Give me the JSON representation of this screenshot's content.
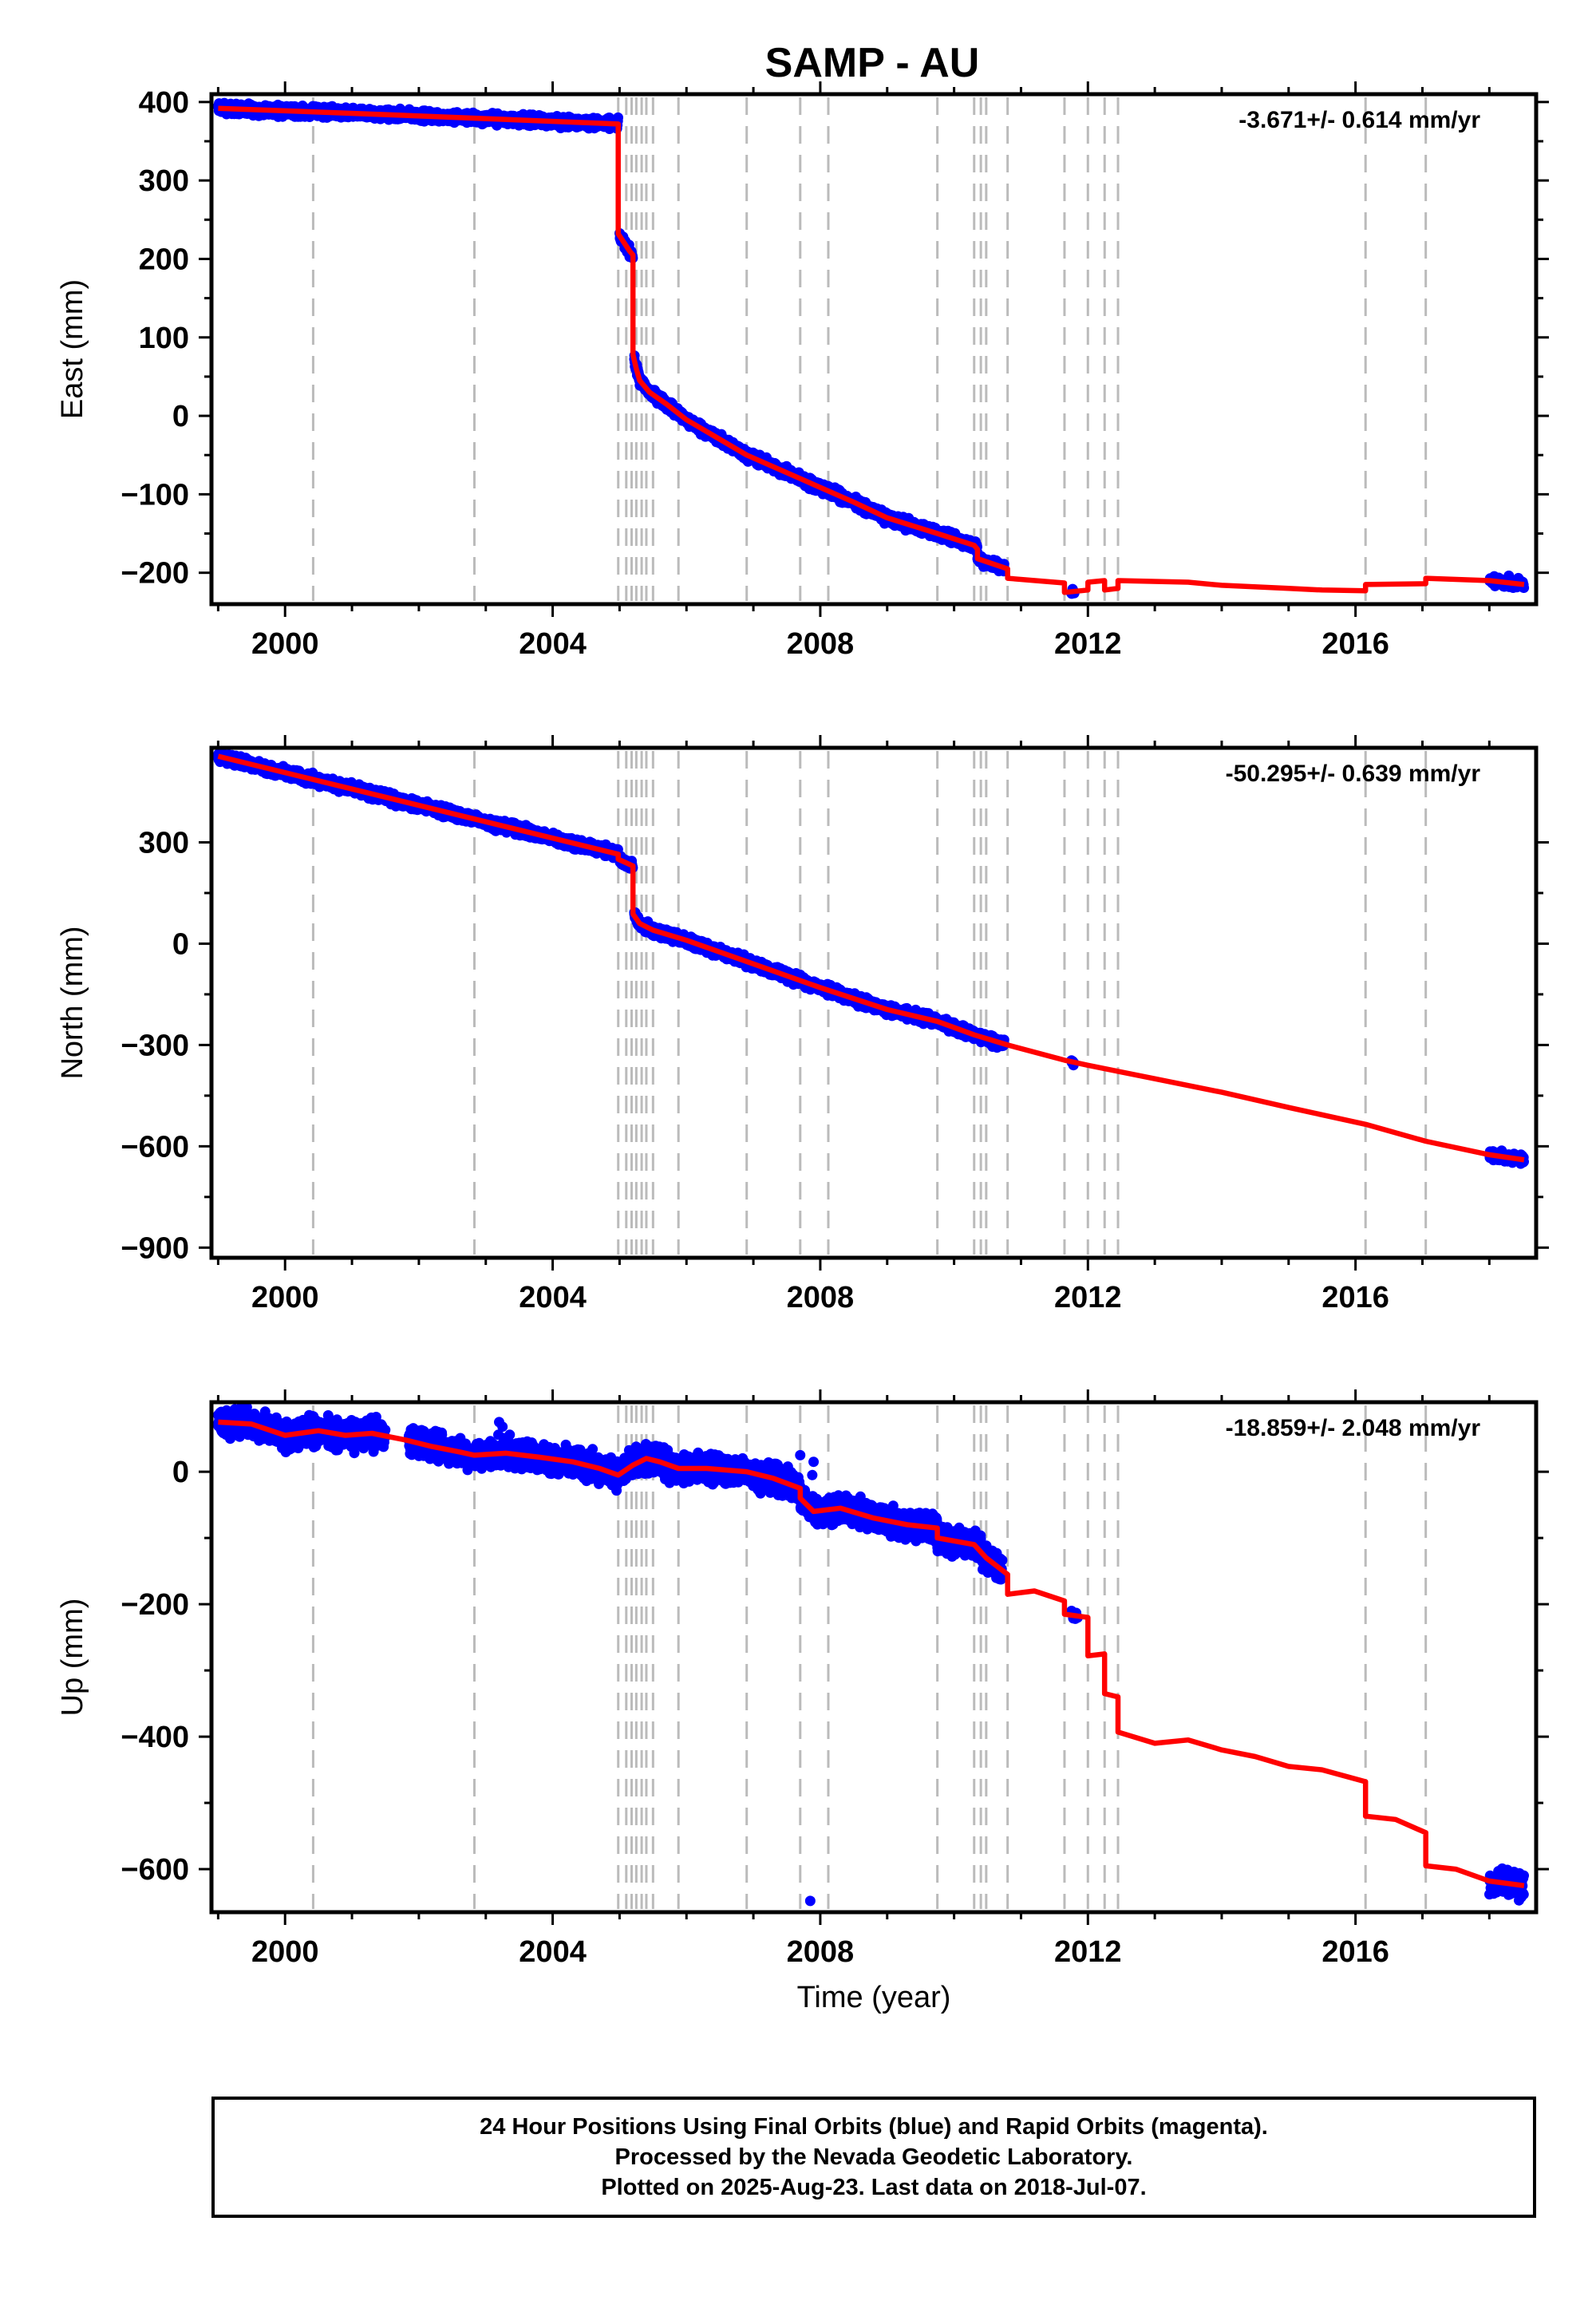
{
  "title": "SAMP - AU",
  "xlabel": "Time (year)",
  "colors": {
    "final_orbit_points": "#0000ff",
    "model_line": "#ff0000",
    "event_lines": "#bbbbbb"
  },
  "footer": {
    "line1": "24 Hour Positions Using Final Orbits (blue) and Rapid Orbits (magenta).",
    "line2": "Processed by the Nevada Geodetic Laboratory.",
    "line3": "Plotted on 2025-Aug-23. Last data on 2018-Jul-07."
  },
  "event_lines": [
    2000.42,
    2002.83,
    2004.98,
    2005.1,
    2005.18,
    2005.25,
    2005.33,
    2005.4,
    2005.5,
    2005.88,
    2006.9,
    2007.7,
    2008.12,
    2009.75,
    2010.3,
    2010.4,
    2010.48,
    2010.8,
    2011.65,
    2012.0,
    2012.25,
    2012.45,
    2016.15,
    2017.05
  ],
  "chart_data": [
    {
      "type": "scatter",
      "component": "East",
      "ylabel": "East (mm)",
      "rate": "-3.671+/- 0.614 mm/yr",
      "xlim": [
        1998.9,
        2018.7
      ],
      "ylim": [
        -240,
        410
      ],
      "xticks": [
        2000,
        2004,
        2008,
        2012,
        2016
      ],
      "yticks": [
        -200,
        -100,
        0,
        100,
        200,
        300,
        400
      ],
      "data_segments": [
        [
          1999.0,
          2004.98,
          2.0
        ],
        [
          2005.0,
          2005.2,
          1.5
        ],
        [
          2005.22,
          2010.75,
          2.0
        ],
        [
          2011.75,
          2011.8,
          0.6
        ],
        [
          2018.0,
          2018.52,
          1.2
        ]
      ],
      "model_knots": [
        [
          1999.0,
          392
        ],
        [
          2001.5,
          384
        ],
        [
          2004.98,
          372
        ],
        [
          2004.98,
          232
        ],
        [
          2005.15,
          210
        ],
        [
          2005.2,
          205
        ],
        [
          2005.2,
          78
        ],
        [
          2005.25,
          60
        ],
        [
          2005.3,
          45
        ],
        [
          2005.45,
          30
        ],
        [
          2005.7,
          15
        ],
        [
          2006.0,
          -5
        ],
        [
          2006.9,
          -50
        ],
        [
          2007.7,
          -80
        ],
        [
          2008.5,
          -110
        ],
        [
          2009.0,
          -130
        ],
        [
          2009.75,
          -150
        ],
        [
          2010.3,
          -165
        ],
        [
          2010.35,
          -170
        ],
        [
          2010.35,
          -182
        ],
        [
          2010.8,
          -195
        ],
        [
          2010.8,
          -207
        ],
        [
          2011.65,
          -213
        ],
        [
          2011.65,
          -225
        ],
        [
          2012.0,
          -222
        ],
        [
          2012.0,
          -212
        ],
        [
          2012.25,
          -210
        ],
        [
          2012.25,
          -222
        ],
        [
          2012.45,
          -220
        ],
        [
          2012.45,
          -210
        ],
        [
          2013.5,
          -212
        ],
        [
          2014.0,
          -216
        ],
        [
          2015.0,
          -220
        ],
        [
          2015.5,
          -222
        ],
        [
          2016.15,
          -223
        ],
        [
          2016.15,
          -215
        ],
        [
          2017.05,
          -214
        ],
        [
          2017.05,
          -207
        ],
        [
          2018.0,
          -210
        ],
        [
          2018.52,
          -215
        ]
      ]
    },
    {
      "type": "scatter",
      "component": "North",
      "ylabel": "North (mm)",
      "rate": "-50.295+/- 0.639 mm/yr",
      "xlim": [
        1998.9,
        2018.7
      ],
      "ylim": [
        -930,
        580
      ],
      "xticks": [
        2000,
        2004,
        2008,
        2012,
        2016
      ],
      "yticks": [
        -900,
        -600,
        -300,
        0,
        300
      ],
      "data_segments": [
        [
          1999.0,
          2004.98,
          2.0
        ],
        [
          2005.0,
          2005.2,
          1.5
        ],
        [
          2005.22,
          2010.75,
          2.0
        ],
        [
          2011.75,
          2011.8,
          0.6
        ],
        [
          2018.0,
          2018.52,
          1.2
        ]
      ],
      "model_knots": [
        [
          1999.0,
          555
        ],
        [
          2004.98,
          265
        ],
        [
          2004.98,
          250
        ],
        [
          2005.2,
          230
        ],
        [
          2005.2,
          88
        ],
        [
          2005.3,
          60
        ],
        [
          2005.5,
          40
        ],
        [
          2006.0,
          10
        ],
        [
          2007.0,
          -60
        ],
        [
          2008.0,
          -130
        ],
        [
          2009.0,
          -195
        ],
        [
          2009.75,
          -230
        ],
        [
          2010.3,
          -270
        ],
        [
          2010.8,
          -300
        ],
        [
          2011.65,
          -345
        ],
        [
          2012.0,
          -360
        ],
        [
          2012.45,
          -378
        ],
        [
          2013.0,
          -400
        ],
        [
          2014.0,
          -440
        ],
        [
          2015.0,
          -485
        ],
        [
          2016.15,
          -535
        ],
        [
          2017.05,
          -585
        ],
        [
          2018.0,
          -625
        ],
        [
          2018.52,
          -640
        ]
      ]
    },
    {
      "type": "scatter",
      "component": "Up",
      "ylabel": "Up (mm)",
      "rate": "-18.859+/- 2.048 mm/yr",
      "xlim": [
        1998.9,
        2018.7
      ],
      "ylim": [
        -665,
        105
      ],
      "xticks": [
        2000,
        2004,
        2008,
        2012,
        2016
      ],
      "yticks": [
        -600,
        -400,
        -200,
        0
      ],
      "data_segments": [
        [
          1999.0,
          2001.5,
          2.2
        ],
        [
          2001.85,
          2004.98,
          2.2
        ],
        [
          2005.0,
          2010.72,
          2.2
        ],
        [
          2011.75,
          2011.85,
          0.6
        ],
        [
          2018.0,
          2018.52,
          1.2
        ]
      ],
      "outliers": [
        [
          2003.2,
          75
        ],
        [
          2003.25,
          68
        ],
        [
          2007.7,
          25
        ],
        [
          2007.9,
          15
        ],
        [
          2007.88,
          -5
        ],
        [
          2007.85,
          -648
        ]
      ],
      "model_knots": [
        [
          1999.0,
          75
        ],
        [
          1999.5,
          72
        ],
        [
          2000.0,
          55
        ],
        [
          2000.5,
          62
        ],
        [
          2000.9,
          55
        ],
        [
          2001.3,
          58
        ],
        [
          2001.8,
          48
        ],
        [
          2002.2,
          38
        ],
        [
          2002.6,
          30
        ],
        [
          2002.83,
          25
        ],
        [
          2003.3,
          28
        ],
        [
          2003.8,
          22
        ],
        [
          2004.3,
          15
        ],
        [
          2004.7,
          5
        ],
        [
          2004.98,
          -5
        ],
        [
          2005.2,
          10
        ],
        [
          2005.4,
          20
        ],
        [
          2005.6,
          15
        ],
        [
          2005.88,
          5
        ],
        [
          2006.3,
          5
        ],
        [
          2006.9,
          0
        ],
        [
          2007.3,
          -10
        ],
        [
          2007.7,
          -25
        ],
        [
          2007.7,
          -40
        ],
        [
          2007.9,
          -60
        ],
        [
          2008.3,
          -55
        ],
        [
          2008.8,
          -70
        ],
        [
          2009.3,
          -80
        ],
        [
          2009.75,
          -85
        ],
        [
          2009.75,
          -100
        ],
        [
          2010.3,
          -110
        ],
        [
          2010.48,
          -130
        ],
        [
          2010.8,
          -155
        ],
        [
          2010.8,
          -185
        ],
        [
          2011.2,
          -180
        ],
        [
          2011.65,
          -195
        ],
        [
          2011.65,
          -215
        ],
        [
          2012.0,
          -220
        ],
        [
          2012.0,
          -278
        ],
        [
          2012.25,
          -275
        ],
        [
          2012.25,
          -335
        ],
        [
          2012.45,
          -340
        ],
        [
          2012.45,
          -393
        ],
        [
          2013.0,
          -410
        ],
        [
          2013.5,
          -405
        ],
        [
          2014.0,
          -420
        ],
        [
          2014.5,
          -430
        ],
        [
          2015.0,
          -445
        ],
        [
          2015.5,
          -450
        ],
        [
          2016.15,
          -468
        ],
        [
          2016.15,
          -520
        ],
        [
          2016.6,
          -525
        ],
        [
          2017.05,
          -545
        ],
        [
          2017.05,
          -595
        ],
        [
          2017.5,
          -600
        ],
        [
          2018.0,
          -618
        ],
        [
          2018.52,
          -625
        ]
      ]
    }
  ]
}
